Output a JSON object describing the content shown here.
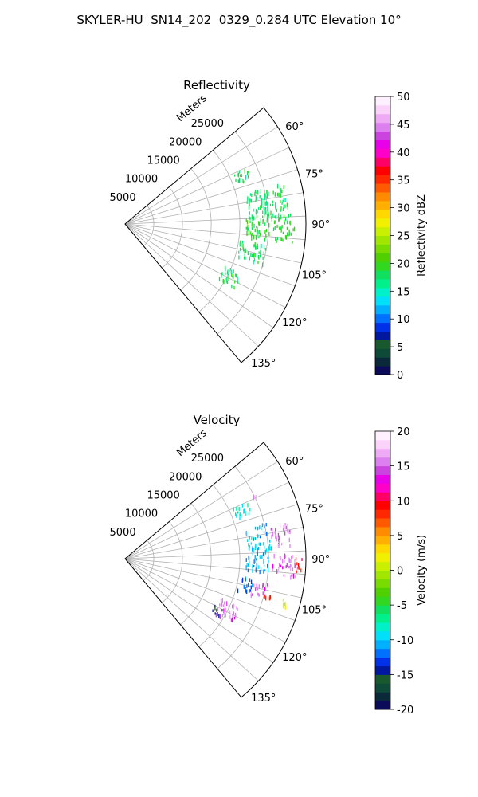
{
  "figure": {
    "title": "SKYLER-HU  SN14_202  0329_0.284 UTC Elevation 10°"
  },
  "chart_data": [
    {
      "type": "polar-sector",
      "title": "Reflectivity",
      "range_label": "Meters",
      "range_ticks": [
        5000,
        10000,
        15000,
        20000,
        25000
      ],
      "range_max": 31500,
      "azimuth_range": [
        50,
        140
      ],
      "azimuth_ticks": [
        "60°",
        "75°",
        "90°",
        "105°",
        "120°",
        "135°"
      ],
      "colorbar": {
        "label": "Reflectivity dBZ",
        "range": [
          0,
          50
        ],
        "ticks": [
          0,
          5,
          10,
          15,
          20,
          25,
          30,
          35,
          40,
          45,
          50
        ]
      },
      "clusters": [
        {
          "az": [
            64,
            70
          ],
          "r": [
            20500,
            23500
          ],
          "value": 18
        },
        {
          "az": [
            75,
            87
          ],
          "r": [
            21500,
            28500
          ],
          "value": 18
        },
        {
          "az": [
            86,
            96
          ],
          "r": [
            21000,
            29500
          ],
          "value": 19
        },
        {
          "az": [
            98,
            106
          ],
          "r": [
            20000,
            25000
          ],
          "value": 18
        },
        {
          "az": [
            112,
            120
          ],
          "r": [
            18500,
            22000
          ],
          "value": 18
        }
      ]
    },
    {
      "type": "polar-sector",
      "title": "Velocity",
      "range_label": "Meters",
      "range_ticks": [
        5000,
        10000,
        15000,
        20000,
        25000
      ],
      "range_max": 31500,
      "azimuth_range": [
        50,
        140
      ],
      "azimuth_ticks": [
        "60°",
        "75°",
        "90°",
        "105°",
        "120°",
        "135°"
      ],
      "colorbar": {
        "label": "Velocity (m/s)",
        "range": [
          -20,
          20
        ],
        "ticks": [
          -20,
          -15,
          -10,
          -5,
          0,
          5,
          10,
          15,
          20
        ]
      },
      "clusters": [
        {
          "az": [
            64,
            70
          ],
          "r": [
            20500,
            23500
          ],
          "value": -8
        },
        {
          "az": [
            63,
            66
          ],
          "r": [
            24500,
            25500
          ],
          "value": 16
        },
        {
          "az": [
            75,
            87
          ],
          "r": [
            21500,
            25500
          ],
          "value": -10
        },
        {
          "az": [
            77,
            85
          ],
          "r": [
            25500,
            29500
          ],
          "value": 15
        },
        {
          "az": [
            87,
            95
          ],
          "r": [
            21000,
            25000
          ],
          "value": -11
        },
        {
          "az": [
            88,
            96
          ],
          "r": [
            25500,
            30000
          ],
          "value": 15
        },
        {
          "az": [
            89,
            94
          ],
          "r": [
            29500,
            31000
          ],
          "value": 9
        },
        {
          "az": [
            98,
            105
          ],
          "r": [
            20000,
            22500
          ],
          "value": -12
        },
        {
          "az": [
            99,
            106
          ],
          "r": [
            22500,
            25500
          ],
          "value": 15
        },
        {
          "az": [
            103,
            106
          ],
          "r": [
            25000,
            26500
          ],
          "value": 9
        },
        {
          "az": [
            104,
            107
          ],
          "r": [
            27500,
            29000
          ],
          "value": 1
        },
        {
          "az": [
            112,
            121
          ],
          "r": [
            18000,
            21500
          ],
          "value": 15
        },
        {
          "az": [
            117,
            121
          ],
          "r": [
            17500,
            19000
          ],
          "value": -15
        }
      ]
    }
  ],
  "colors": {
    "reflectivity_cmap": [
      "#0b0b5a",
      "#0a2a3a",
      "#0e4a38",
      "#185a2e",
      "#0018a0",
      "#0030e8",
      "#0070ff",
      "#00b0ff",
      "#00e0f8",
      "#00f0c8",
      "#00f08c",
      "#10e060",
      "#32d820",
      "#50d000",
      "#78dc00",
      "#a0e600",
      "#c8f000",
      "#f0f000",
      "#ffd800",
      "#ffb000",
      "#ff8c00",
      "#ff5a00",
      "#ff2800",
      "#ff0000",
      "#ff0064",
      "#ff00c8",
      "#e800e8",
      "#cc44e0",
      "#dc80f0",
      "#eeaaf4",
      "#fad2fa",
      "#fff0ff"
    ],
    "velocity_cmap": [
      "#0b0b5a",
      "#0a2a3a",
      "#0e4a38",
      "#185a2e",
      "#0018a0",
      "#0030e8",
      "#0070ff",
      "#00b0ff",
      "#00e0f8",
      "#00f0c8",
      "#00f08c",
      "#10e060",
      "#32d820",
      "#50d000",
      "#78dc00",
      "#a0e600",
      "#c8f000",
      "#f0f000",
      "#ffd800",
      "#ffb000",
      "#ff8c00",
      "#ff5a00",
      "#ff2800",
      "#ff0000",
      "#ff0064",
      "#ff00c8",
      "#e800e8",
      "#cc44e0",
      "#dc80f0",
      "#eeaaf4",
      "#fad2fa",
      "#fff0ff"
    ]
  }
}
